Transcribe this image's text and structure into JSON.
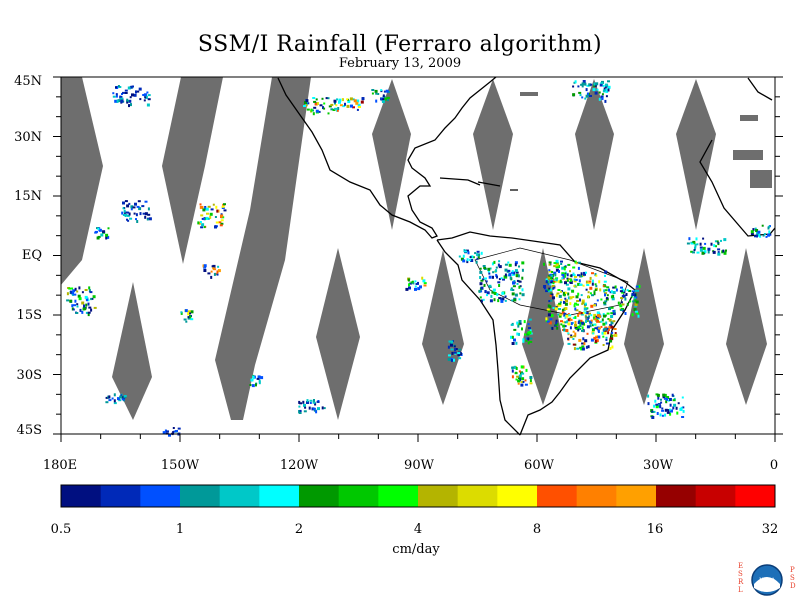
{
  "title": "SSM/I Rainfall (Ferraro algorithm)",
  "subtitle": "February 13, 2009",
  "latitude_labels": [
    "45N",
    "30N",
    "15N",
    "EQ",
    "15S",
    "30S",
    "45S"
  ],
  "longitude_labels": [
    "180E",
    "150W",
    "120W",
    "90W",
    "60W",
    "30W",
    "0"
  ],
  "colorbar": {
    "colors": [
      "#000f80",
      "#0029b8",
      "#0050ff",
      "#009999",
      "#00c8c8",
      "#00ffff",
      "#009900",
      "#00c800",
      "#00ff00",
      "#b4b400",
      "#dcdc00",
      "#ffff00",
      "#ff5000",
      "#ff8000",
      "#ffa000",
      "#960000",
      "#c80000",
      "#ff0000"
    ],
    "tick_labels": [
      "0.5",
      "1",
      "2",
      "4",
      "8",
      "16",
      "32"
    ],
    "unit": "cm/day"
  },
  "map": {
    "lat_range": [
      "45S",
      "45N"
    ],
    "lon_range": [
      "180E",
      "0"
    ],
    "no_data_color": "#6e6e6e",
    "land_color": "#ffffff",
    "coastline_color": "#000000"
  },
  "logo": {
    "left_text": "ESRL",
    "right_text": "PSD",
    "center_text": "NOAA",
    "colors": {
      "ring": "#1d6fb8",
      "accent": "#e8402a"
    }
  }
}
